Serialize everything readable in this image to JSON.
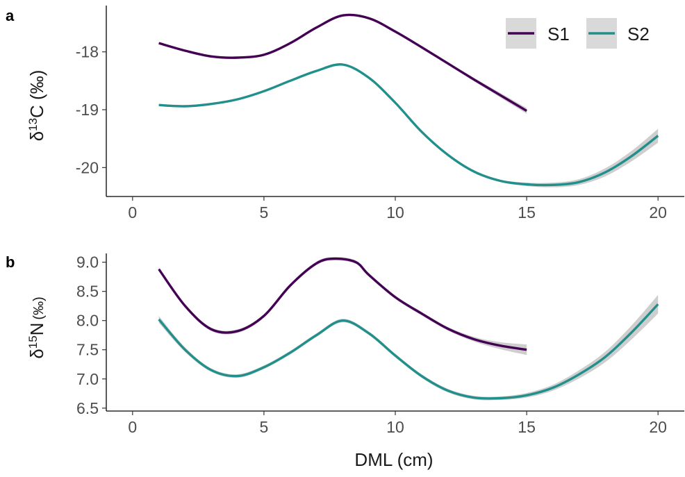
{
  "chart_data": [
    {
      "type": "line",
      "panel_label": "a",
      "ylabel_prefix": "δ",
      "ylabel_sup": "13",
      "ylabel_suffix": "C (‰)",
      "xlim": [
        -1,
        21
      ],
      "ylim": [
        -20.5,
        -17.2
      ],
      "xticks": [
        "0",
        "5",
        "10",
        "15",
        "20"
      ],
      "yticks": [
        "-18",
        "-19",
        "-20"
      ],
      "ytick_values": [
        -18,
        -19,
        -20
      ],
      "xtick_values": [
        0,
        5,
        10,
        15,
        20
      ],
      "grid": false,
      "legend": {
        "position": "top-right",
        "entries": [
          "S1",
          "S2"
        ]
      },
      "series": [
        {
          "name": "S1",
          "color": "#440154",
          "x": [
            1,
            2,
            3,
            4,
            5,
            6,
            7,
            8,
            9,
            10,
            11,
            12,
            13,
            14,
            15
          ],
          "y": [
            -17.85,
            -17.98,
            -18.08,
            -18.1,
            -18.05,
            -17.85,
            -17.58,
            -17.37,
            -17.42,
            -17.65,
            -17.92,
            -18.2,
            -18.48,
            -18.75,
            -19.02
          ],
          "band": [
            0.02,
            0.02,
            0.02,
            0.02,
            0.02,
            0.02,
            0.02,
            0.02,
            0.02,
            0.02,
            0.02,
            0.02,
            0.03,
            0.04,
            0.05
          ]
        },
        {
          "name": "S2",
          "color": "#21908C",
          "x": [
            1,
            2,
            3,
            4,
            5,
            6,
            7,
            8,
            9,
            10,
            11,
            12,
            13,
            14,
            15,
            16,
            17,
            18,
            19,
            20
          ],
          "y": [
            -18.92,
            -18.94,
            -18.9,
            -18.82,
            -18.68,
            -18.5,
            -18.33,
            -18.22,
            -18.45,
            -18.88,
            -19.38,
            -19.78,
            -20.07,
            -20.23,
            -20.29,
            -20.3,
            -20.25,
            -20.08,
            -19.8,
            -19.45
          ],
          "band": [
            0.02,
            0.02,
            0.02,
            0.02,
            0.02,
            0.02,
            0.02,
            0.02,
            0.02,
            0.02,
            0.02,
            0.02,
            0.02,
            0.02,
            0.03,
            0.04,
            0.05,
            0.07,
            0.09,
            0.12
          ]
        }
      ]
    },
    {
      "type": "line",
      "panel_label": "b",
      "ylabel_prefix": "δ",
      "ylabel_sup": "15",
      "ylabel_suffix": "N",
      "ylabel_small": "(‰)",
      "xlabel": "DML (cm)",
      "xlim": [
        -1,
        21
      ],
      "ylim": [
        6.45,
        9.15
      ],
      "xticks": [
        "0",
        "5",
        "10",
        "15",
        "20"
      ],
      "yticks": [
        "9.0",
        "8.5",
        "8.0",
        "7.5",
        "7.0",
        "6.5"
      ],
      "ytick_values": [
        9.0,
        8.5,
        8.0,
        7.5,
        7.0,
        6.5
      ],
      "xtick_values": [
        0,
        5,
        10,
        15,
        20
      ],
      "grid": false,
      "series": [
        {
          "name": "S1",
          "color": "#440154",
          "x": [
            1,
            2,
            3,
            4,
            5,
            6,
            7,
            7.7,
            8.5,
            9,
            10,
            11,
            12,
            13,
            14,
            15
          ],
          "y": [
            8.88,
            8.25,
            7.85,
            7.82,
            8.08,
            8.6,
            8.98,
            9.06,
            9.0,
            8.78,
            8.4,
            8.12,
            7.86,
            7.68,
            7.57,
            7.5
          ],
          "band": [
            0.03,
            0.03,
            0.03,
            0.03,
            0.03,
            0.03,
            0.03,
            0.03,
            0.03,
            0.03,
            0.03,
            0.03,
            0.03,
            0.04,
            0.06,
            0.09
          ]
        },
        {
          "name": "S2",
          "color": "#21908C",
          "x": [
            1,
            2,
            3,
            4,
            5,
            6,
            7,
            8,
            9,
            10,
            11,
            12,
            13,
            14,
            15,
            16,
            17,
            18,
            19,
            20
          ],
          "y": [
            8.02,
            7.5,
            7.15,
            7.05,
            7.2,
            7.45,
            7.75,
            8.0,
            7.78,
            7.4,
            7.05,
            6.8,
            6.68,
            6.67,
            6.72,
            6.85,
            7.08,
            7.38,
            7.8,
            8.28
          ],
          "band": [
            0.06,
            0.04,
            0.03,
            0.03,
            0.03,
            0.03,
            0.03,
            0.03,
            0.03,
            0.03,
            0.03,
            0.03,
            0.03,
            0.03,
            0.04,
            0.05,
            0.07,
            0.09,
            0.12,
            0.16
          ]
        }
      ]
    }
  ]
}
